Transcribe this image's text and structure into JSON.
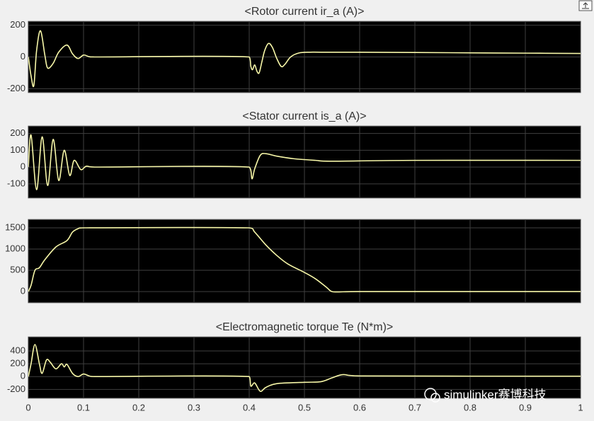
{
  "chart_data": [
    {
      "type": "line",
      "title": "<Rotor current ir_a (A)>",
      "color": "#f7f7a8",
      "grid": true,
      "xlim": [
        0,
        1
      ],
      "xticks": [
        0,
        0.1,
        0.2,
        0.3,
        0.4,
        0.5,
        0.6,
        0.7,
        0.8,
        0.9,
        1
      ],
      "xtick_labels": false,
      "ylim": [
        -225,
        225
      ],
      "yticks": [
        -200,
        0,
        200
      ],
      "x": [
        0,
        0.005,
        0.01,
        0.015,
        0.022,
        0.03,
        0.035,
        0.045,
        0.055,
        0.07,
        0.08,
        0.09,
        0.1,
        0.11,
        0.12,
        0.4,
        0.403,
        0.406,
        0.41,
        0.414,
        0.418,
        0.423,
        0.428,
        0.435,
        0.442,
        0.45,
        0.458,
        0.465,
        0.475,
        0.49,
        0.51,
        0.53,
        0.6,
        0.7,
        0.8,
        0.9,
        1
      ],
      "values": [
        0,
        -120,
        -180,
        40,
        165,
        10,
        -70,
        -40,
        30,
        75,
        20,
        -10,
        12,
        2,
        0,
        0,
        -60,
        -80,
        -50,
        -90,
        -100,
        -30,
        40,
        85,
        60,
        -10,
        -60,
        -45,
        0,
        25,
        30,
        30,
        30,
        28,
        26,
        24,
        22
      ]
    },
    {
      "type": "line",
      "title": "<Stator current is_a (A)>",
      "color": "#f7f7a8",
      "grid": true,
      "xlim": [
        0,
        1
      ],
      "xticks": [
        0,
        0.1,
        0.2,
        0.3,
        0.4,
        0.5,
        0.6,
        0.7,
        0.8,
        0.9,
        1
      ],
      "xtick_labels": false,
      "ylim": [
        -185,
        245
      ],
      "yticks": [
        -100,
        0,
        100,
        200
      ],
      "x": [
        0,
        0.005,
        0.015,
        0.025,
        0.035,
        0.045,
        0.055,
        0.065,
        0.075,
        0.083,
        0.095,
        0.105,
        0.12,
        0.4,
        0.405,
        0.41,
        0.42,
        0.43,
        0.45,
        0.48,
        0.52,
        0.55,
        0.7,
        1
      ],
      "values": [
        0,
        190,
        -135,
        180,
        -110,
        165,
        -80,
        100,
        -50,
        40,
        -15,
        5,
        0,
        0,
        -70,
        -10,
        70,
        80,
        65,
        50,
        40,
        35,
        40,
        40
      ]
    },
    {
      "type": "line",
      "color": "#f7f7a8",
      "grid": true,
      "xlim": [
        0,
        1
      ],
      "xticks": [
        0,
        0.1,
        0.2,
        0.3,
        0.4,
        0.5,
        0.6,
        0.7,
        0.8,
        0.9,
        1
      ],
      "xtick_labels": false,
      "ylim": [
        -265,
        1700
      ],
      "yticks": [
        0,
        500,
        1000,
        1500
      ],
      "x": [
        0,
        0.005,
        0.012,
        0.02,
        0.03,
        0.05,
        0.07,
        0.08,
        0.09,
        0.1,
        0.4,
        0.41,
        0.43,
        0.45,
        0.47,
        0.5,
        0.52,
        0.54,
        0.55,
        0.57,
        0.6,
        1
      ],
      "values": [
        0,
        150,
        500,
        560,
        750,
        1050,
        1200,
        1400,
        1480,
        1500,
        1500,
        1400,
        1100,
        850,
        650,
        450,
        300,
        100,
        0,
        -5,
        0,
        0
      ]
    },
    {
      "type": "line",
      "title": "<Electromagnetic torque Te (N*m)>",
      "color": "#f7f7a8",
      "grid": true,
      "xlim": [
        0,
        1
      ],
      "xticks": [
        0,
        0.1,
        0.2,
        0.3,
        0.4,
        0.5,
        0.6,
        0.7,
        0.8,
        0.9,
        1
      ],
      "xtick_labels": true,
      "ylim": [
        -340,
        620
      ],
      "yticks": [
        -200,
        0,
        200,
        400
      ],
      "x": [
        0,
        0.005,
        0.012,
        0.02,
        0.025,
        0.033,
        0.04,
        0.05,
        0.06,
        0.065,
        0.07,
        0.08,
        0.09,
        0.1,
        0.11,
        0.12,
        0.4,
        0.403,
        0.41,
        0.42,
        0.43,
        0.45,
        0.5,
        0.53,
        0.55,
        0.57,
        0.6,
        1
      ],
      "values": [
        0,
        200,
        500,
        200,
        50,
        260,
        220,
        120,
        200,
        150,
        190,
        50,
        0,
        40,
        10,
        0,
        0,
        -150,
        -100,
        -230,
        -170,
        -110,
        -90,
        -80,
        -20,
        30,
        10,
        5
      ]
    }
  ],
  "watermark": "simulinker赛博科技"
}
